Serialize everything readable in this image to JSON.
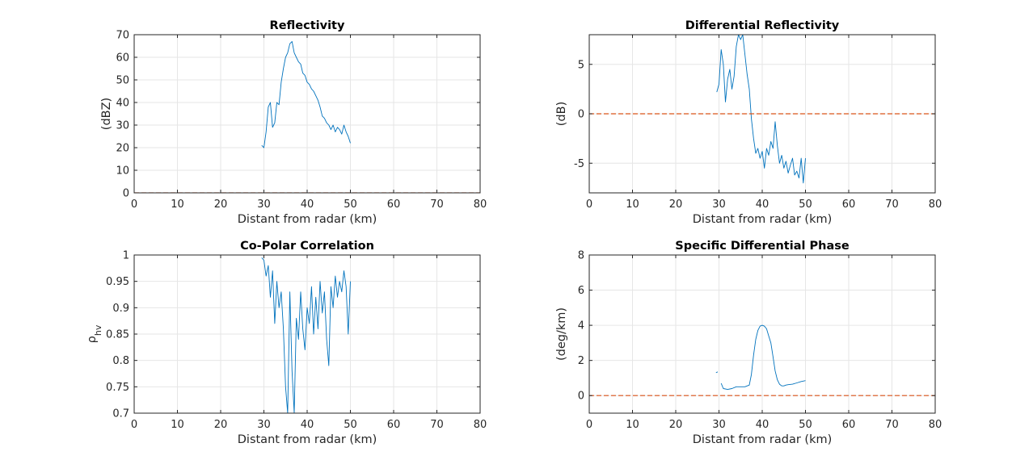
{
  "chart_data": [
    {
      "type": "line",
      "title": "Reflectivity",
      "xlabel": "Distant from radar (km)",
      "ylabel": "(dBZ)",
      "xlim": [
        0,
        80
      ],
      "ylim": [
        0,
        70
      ],
      "xticks": [
        0,
        10,
        20,
        30,
        40,
        50,
        60,
        70,
        80
      ],
      "yticks": [
        0,
        10,
        20,
        30,
        40,
        50,
        60,
        70
      ],
      "grid": true,
      "series": [
        {
          "color": "#0072BD",
          "x": [
            29.5,
            30.0,
            30.5,
            31.0,
            31.5,
            32.0,
            32.5,
            33.0,
            33.5,
            34.0,
            34.5,
            35.0,
            35.5,
            36.0,
            36.5,
            37.0,
            37.5,
            38.0,
            38.5,
            39.0,
            39.5,
            40.0,
            40.5,
            41.0,
            41.5,
            42.0,
            42.5,
            43.0,
            43.5,
            44.0,
            44.5,
            45.0,
            45.5,
            46.0,
            46.5,
            47.0,
            47.5,
            48.0,
            48.5,
            49.0,
            49.5,
            50.0
          ],
          "y": [
            21,
            20,
            27,
            38,
            40,
            29,
            31,
            40,
            39,
            49,
            55,
            60,
            62,
            66,
            67,
            62,
            60,
            58,
            57,
            53,
            52,
            49,
            48,
            46,
            45,
            43,
            41,
            38,
            34,
            33,
            31,
            30,
            28,
            30,
            27,
            29,
            28,
            26,
            30,
            27,
            25,
            22
          ]
        },
        {
          "color": "#D95319",
          "style": "dashed",
          "x": [
            0,
            80
          ],
          "y": [
            0,
            0
          ]
        }
      ]
    },
    {
      "type": "line",
      "title": "Differential Reflectivity",
      "xlabel": "Distant from radar (km)",
      "ylabel": "(dB)",
      "xlim": [
        0,
        80
      ],
      "ylim": [
        -8,
        8
      ],
      "xticks": [
        0,
        10,
        20,
        30,
        40,
        50,
        60,
        70,
        80
      ],
      "yticks": [
        -5,
        0,
        5
      ],
      "grid": true,
      "series": [
        {
          "color": "#0072BD",
          "x": [
            29.5,
            30.0,
            30.5,
            31.0,
            31.5,
            32.0,
            32.5,
            33.0,
            33.5,
            34.0,
            34.5,
            35.0,
            35.5,
            36.0,
            36.5,
            37.0,
            37.5,
            38.0,
            38.5,
            39.0,
            39.5,
            40.0,
            40.5,
            41.0,
            41.5,
            42.0,
            42.5,
            43.0,
            43.5,
            44.0,
            44.5,
            45.0,
            45.5,
            46.0,
            46.5,
            47.0,
            47.5,
            48.0,
            48.5,
            49.0,
            49.5,
            50.0
          ],
          "y": [
            2.2,
            3.0,
            6.5,
            5.0,
            1.2,
            3.5,
            4.5,
            2.5,
            3.8,
            6.8,
            8.0,
            7.5,
            8.0,
            6.0,
            4.0,
            2.5,
            -0.5,
            -2.5,
            -4.0,
            -3.5,
            -4.5,
            -3.8,
            -5.5,
            -3.5,
            -4.2,
            -2.8,
            -3.5,
            -0.8,
            -3.2,
            -5.0,
            -4.2,
            -5.5,
            -4.8,
            -6.0,
            -5.2,
            -4.5,
            -6.2,
            -5.8,
            -6.5,
            -4.5,
            -7.0,
            -4.5
          ]
        },
        {
          "color": "#D95319",
          "style": "dashed",
          "x": [
            0,
            80
          ],
          "y": [
            0,
            0
          ]
        }
      ]
    },
    {
      "type": "line",
      "title": "Co-Polar Correlation",
      "xlabel": "Distant from radar (km)",
      "ylabel": "ρhv",
      "xlim": [
        0,
        80
      ],
      "ylim": [
        0.7,
        1.0
      ],
      "xticks": [
        0,
        10,
        20,
        30,
        40,
        50,
        60,
        70,
        80
      ],
      "yticks": [
        0.7,
        0.75,
        0.8,
        0.85,
        0.9,
        0.95,
        1.0
      ],
      "grid": true,
      "series": [
        {
          "color": "#0072BD",
          "x": [
            29.5,
            30.0,
            30.5,
            31.0,
            31.5,
            32.0,
            32.5,
            33.0,
            33.5,
            34.0,
            34.5,
            35.0,
            35.5,
            36.0,
            36.5,
            37.0,
            37.5,
            38.0,
            38.5,
            39.0,
            39.5,
            40.0,
            40.5,
            41.0,
            41.5,
            42.0,
            42.5,
            43.0,
            43.5,
            44.0,
            44.5,
            45.0,
            45.5,
            46.0,
            46.5,
            47.0,
            47.5,
            48.0,
            48.5,
            49.0,
            49.5,
            50.0
          ],
          "y": [
            0.995,
            0.99,
            0.96,
            0.98,
            0.92,
            0.97,
            0.87,
            0.95,
            0.9,
            0.93,
            0.86,
            0.75,
            0.7,
            0.93,
            0.78,
            0.7,
            0.88,
            0.84,
            0.93,
            0.86,
            0.82,
            0.9,
            0.87,
            0.94,
            0.85,
            0.92,
            0.86,
            0.95,
            0.89,
            0.93,
            0.84,
            0.79,
            0.94,
            0.9,
            0.96,
            0.92,
            0.95,
            0.93,
            0.97,
            0.94,
            0.85,
            0.95
          ]
        }
      ]
    },
    {
      "type": "line",
      "title": "Specific Differential Phase",
      "xlabel": "Distant from radar (km)",
      "ylabel": "(deg/km)",
      "xlim": [
        0,
        80
      ],
      "ylim": [
        -1,
        8
      ],
      "xticks": [
        0,
        10,
        20,
        30,
        40,
        50,
        60,
        70,
        80
      ],
      "yticks": [
        0,
        2,
        4,
        6,
        8
      ],
      "grid": true,
      "series": [
        {
          "color": "#0072BD",
          "x": [
            29.3,
            29.7
          ],
          "y": [
            1.3,
            1.35
          ]
        },
        {
          "color": "#0072BD",
          "x": [
            30.5,
            31.0,
            32.0,
            33.0,
            34.0,
            35.0,
            36.0,
            37.0,
            37.5,
            38.0,
            38.5,
            39.0,
            39.5,
            40.0,
            40.5,
            41.0,
            41.5,
            42.0,
            42.5,
            43.0,
            43.5,
            44.0,
            44.5,
            45.0,
            45.5,
            46.0,
            47.0,
            48.0,
            49.0,
            50.0
          ],
          "y": [
            0.7,
            0.4,
            0.35,
            0.4,
            0.5,
            0.5,
            0.5,
            0.6,
            1.2,
            2.3,
            3.2,
            3.7,
            3.95,
            4.0,
            3.95,
            3.8,
            3.4,
            3.0,
            2.2,
            1.4,
            0.9,
            0.65,
            0.55,
            0.55,
            0.6,
            0.62,
            0.65,
            0.72,
            0.8,
            0.85
          ]
        },
        {
          "color": "#D95319",
          "style": "dashed",
          "x": [
            0,
            80
          ],
          "y": [
            0,
            0
          ]
        }
      ]
    }
  ]
}
